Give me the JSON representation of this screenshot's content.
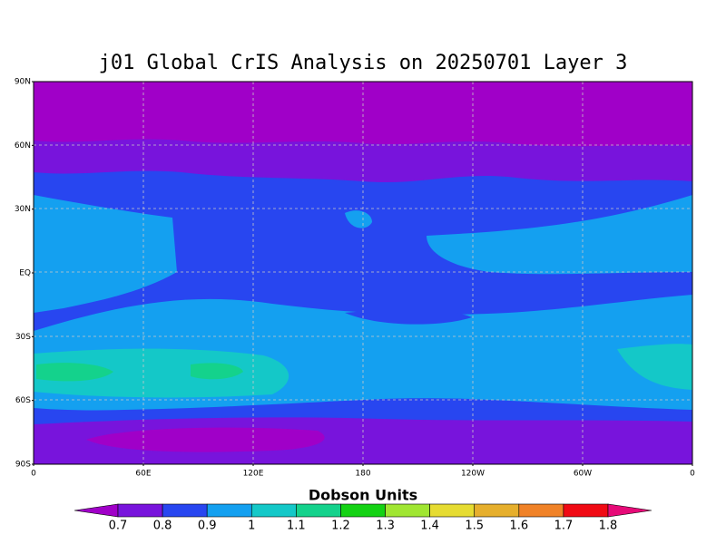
{
  "title": "j01 Global CrIS Analysis on 20250701 Layer 3",
  "map": {
    "lat_ticks": [
      "90N",
      "60N",
      "30N",
      "EQ",
      "30S",
      "60S",
      "90S"
    ],
    "lon_ticks": [
      "0",
      "60E",
      "120E",
      "180",
      "120W",
      "60W",
      "0"
    ]
  },
  "colorbar": {
    "label": "Dobson Units",
    "ticks": [
      0.7,
      0.8,
      0.9,
      1,
      1.1,
      1.2,
      1.3,
      1.4,
      1.5,
      1.6,
      1.7,
      1.8
    ],
    "colors": [
      "#a000c8",
      "#7814dc",
      "#2846f0",
      "#14a0f0",
      "#14c8c8",
      "#14d28c",
      "#14d214",
      "#a0e632",
      "#e6dc32",
      "#e6af2d",
      "#f08228",
      "#f00a14",
      "#e60a78"
    ]
  }
}
